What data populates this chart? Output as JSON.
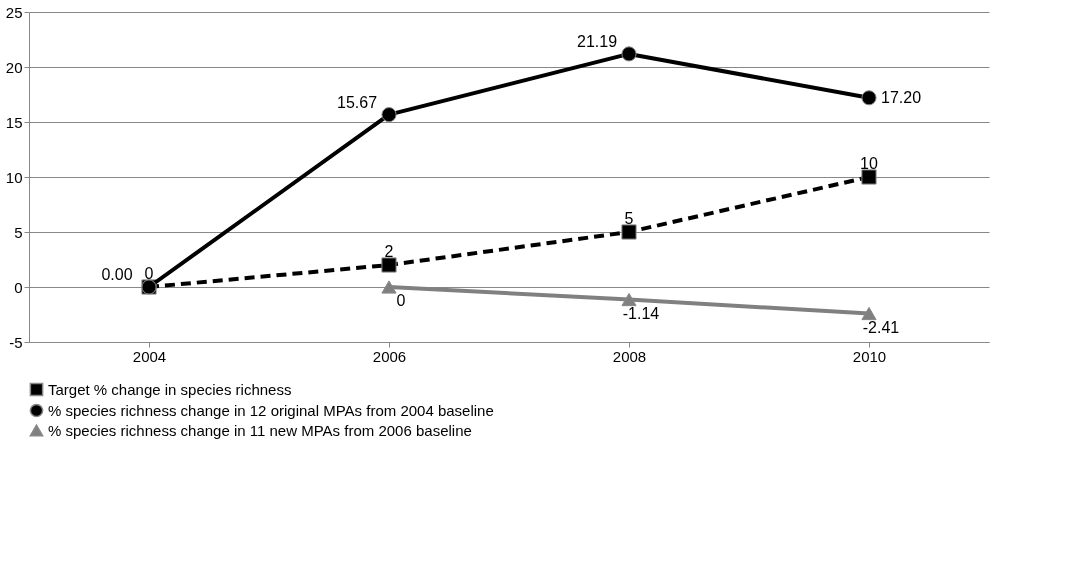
{
  "chart_data": {
    "type": "line",
    "categories": [
      "2004",
      "2006",
      "2008",
      "2010"
    ],
    "series": [
      {
        "name": "Target % change in species richness",
        "color": "#000000",
        "values": [
          0,
          2,
          5,
          10
        ],
        "value_labels": [
          "0",
          "2",
          "5",
          "10"
        ],
        "marker": "square",
        "line_style": "dashed"
      },
      {
        "name": "% species richness change in 12 original MPAs from 2004 baseline",
        "color": "#000000",
        "values": [
          0.0,
          15.67,
          21.19,
          17.2
        ],
        "value_labels": [
          "0.00",
          "15.67",
          "21.19",
          "17.20"
        ],
        "marker": "circle",
        "line_style": "solid"
      },
      {
        "name": "% species richness change in 11 new MPAs from 2006 baseline",
        "color": "#808080",
        "values": [
          null,
          0,
          -1.14,
          -2.41
        ],
        "value_labels": [
          null,
          "0",
          "-1.14",
          "-2.41"
        ],
        "marker": "triangle",
        "line_style": "solid"
      }
    ],
    "ylim": [
      -5,
      25
    ],
    "yticks": [
      -5,
      0,
      5,
      10,
      15,
      20,
      25
    ],
    "grid": "y",
    "legend": "bottom"
  }
}
